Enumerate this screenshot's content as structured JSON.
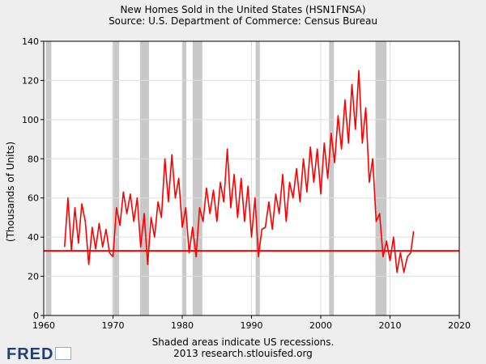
{
  "chart_data": {
    "type": "line",
    "title": "New Homes Sold in the United States (HSN1FNSA)",
    "subtitle": "Source: U.S. Department of Commerce: Census Bureau",
    "xlabel": "",
    "ylabel": "(Thousands of Units)",
    "xlim": [
      1960,
      2020
    ],
    "ylim": [
      0,
      140
    ],
    "x_ticks": [
      1960,
      1970,
      1980,
      1990,
      2000,
      2010,
      2020
    ],
    "y_ticks": [
      0,
      20,
      40,
      60,
      80,
      100,
      120,
      140
    ],
    "grid": true,
    "series_color": "#ff0000",
    "reference_line": {
      "y": 33,
      "color": "#ff0000"
    },
    "recessions": [
      [
        1960.3,
        1961.1
      ],
      [
        1969.9,
        1970.9
      ],
      [
        1973.9,
        1975.2
      ],
      [
        1980.0,
        1980.6
      ],
      [
        1981.5,
        1982.9
      ],
      [
        1990.6,
        1991.2
      ],
      [
        2001.2,
        2001.9
      ],
      [
        2007.9,
        2009.5
      ]
    ],
    "series": [
      {
        "name": "New Homes Sold (HSN1FNSA)",
        "x": [
          1963.0,
          1963.5,
          1964.0,
          1964.5,
          1965.0,
          1965.5,
          1966.0,
          1966.5,
          1967.0,
          1967.5,
          1968.0,
          1968.5,
          1969.0,
          1969.5,
          1970.0,
          1970.5,
          1971.0,
          1971.5,
          1972.0,
          1972.5,
          1973.0,
          1973.5,
          1974.0,
          1974.5,
          1975.0,
          1975.5,
          1976.0,
          1976.5,
          1977.0,
          1977.5,
          1978.0,
          1978.5,
          1979.0,
          1979.5,
          1980.0,
          1980.5,
          1981.0,
          1981.5,
          1982.0,
          1982.5,
          1983.0,
          1983.5,
          1984.0,
          1984.5,
          1985.0,
          1985.5,
          1986.0,
          1986.5,
          1987.0,
          1987.5,
          1988.0,
          1988.5,
          1989.0,
          1989.5,
          1990.0,
          1990.5,
          1991.0,
          1991.5,
          1992.0,
          1992.5,
          1993.0,
          1993.5,
          1994.0,
          1994.5,
          1995.0,
          1995.5,
          1996.0,
          1996.5,
          1997.0,
          1997.5,
          1998.0,
          1998.5,
          1999.0,
          1999.5,
          2000.0,
          2000.5,
          2001.0,
          2001.5,
          2002.0,
          2002.5,
          2003.0,
          2003.5,
          2004.0,
          2004.5,
          2005.0,
          2005.5,
          2006.0,
          2006.5,
          2007.0,
          2007.5,
          2008.0,
          2008.5,
          2009.0,
          2009.5,
          2010.0,
          2010.5,
          2011.0,
          2011.5,
          2012.0,
          2012.5,
          2013.0,
          2013.4
        ],
        "values": [
          35,
          60,
          33,
          55,
          37,
          57,
          48,
          26,
          45,
          34,
          47,
          35,
          44,
          32,
          30,
          55,
          46,
          63,
          52,
          62,
          48,
          60,
          35,
          52,
          26,
          50,
          40,
          58,
          50,
          80,
          58,
          82,
          60,
          70,
          45,
          55,
          32,
          45,
          30,
          55,
          48,
          65,
          52,
          64,
          48,
          68,
          58,
          85,
          55,
          72,
          50,
          70,
          48,
          66,
          40,
          60,
          30,
          44,
          45,
          58,
          44,
          62,
          52,
          72,
          48,
          68,
          60,
          75,
          58,
          80,
          63,
          86,
          68,
          85,
          62,
          88,
          70,
          93,
          78,
          102,
          85,
          110,
          88,
          118,
          95,
          125,
          88,
          106,
          68,
          80,
          48,
          52,
          30,
          38,
          28,
          40,
          22,
          32,
          22,
          30,
          32,
          43
        ]
      }
    ],
    "footnote_line1": "Shaded areas indicate US recessions.",
    "footnote_line2": "2013 research.stlouisfed.org"
  },
  "branding": {
    "logo_text": "FRED"
  }
}
